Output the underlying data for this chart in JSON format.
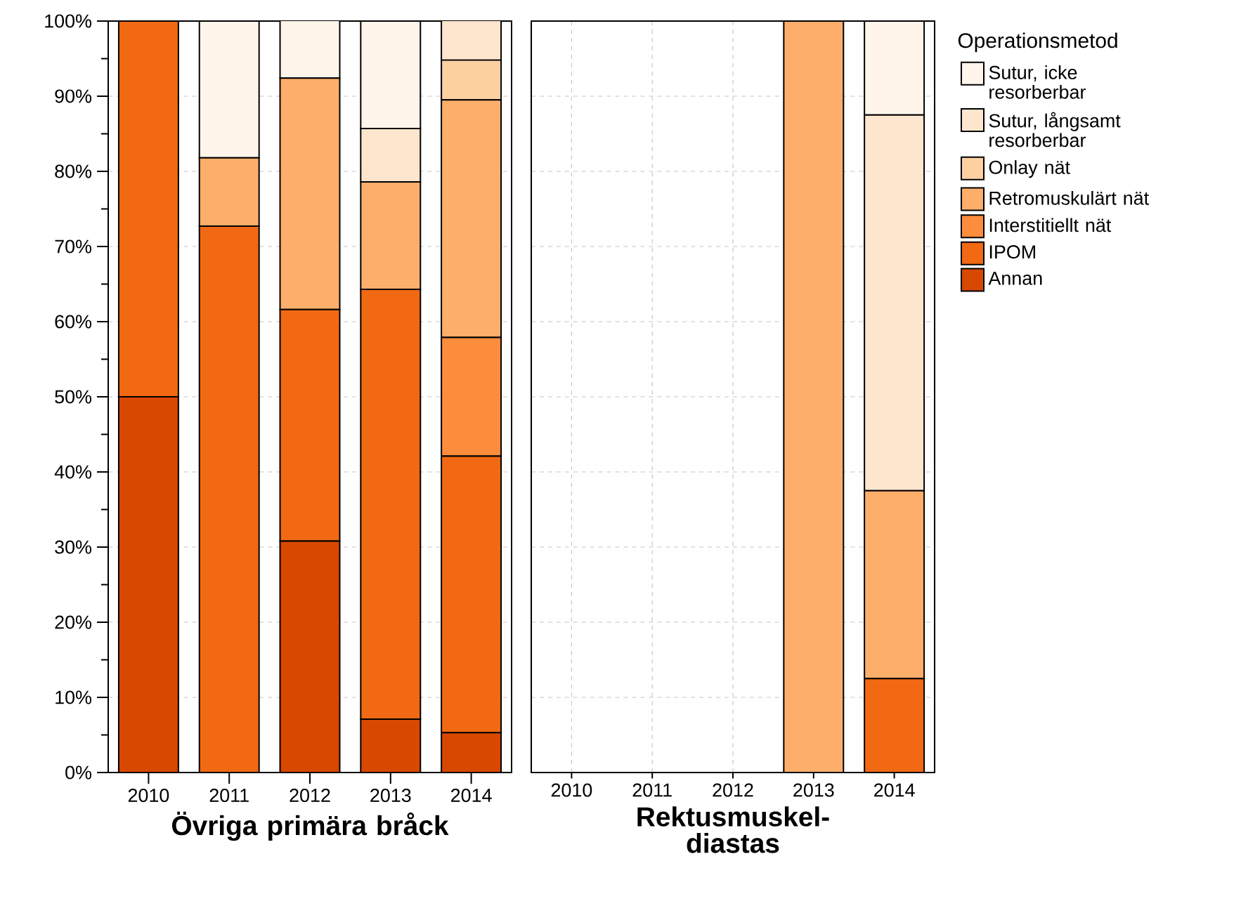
{
  "chart_data": [
    {
      "type": "bar",
      "stacked": true,
      "xlabel": "Övriga primära bråck",
      "categories": [
        "2010",
        "2011",
        "2012",
        "2013",
        "2014"
      ],
      "ylim": [
        0,
        100
      ],
      "yticks": [
        {
          "value": 0,
          "label": "0%"
        },
        {
          "value": 10,
          "label": "10%"
        },
        {
          "value": 20,
          "label": "20%"
        },
        {
          "value": 30,
          "label": "30%"
        },
        {
          "value": 40,
          "label": "40%"
        },
        {
          "value": 50,
          "label": "50%"
        },
        {
          "value": 60,
          "label": "60%"
        },
        {
          "value": 70,
          "label": "70%"
        },
        {
          "value": 80,
          "label": "80%"
        },
        {
          "value": 90,
          "label": "90%"
        },
        {
          "value": 100,
          "label": "100%"
        }
      ],
      "grid": true,
      "legend": false,
      "series": [
        {
          "color": "#d94801",
          "values": [
            50,
            0,
            30.8,
            7.1,
            5.3
          ]
        },
        {
          "color": "#f16913",
          "values": [
            50,
            72.7,
            30.8,
            57.2,
            36.8
          ]
        },
        {
          "color": "#fd8d3c",
          "values": [
            0,
            0,
            0,
            0,
            15.8
          ]
        },
        {
          "color": "#fdae6b",
          "values": [
            0,
            9.1,
            30.8,
            14.3,
            31.6
          ]
        },
        {
          "color": "#fdd0a2",
          "values": [
            0,
            0,
            0,
            0,
            5.3
          ]
        },
        {
          "color": "#fee6ce",
          "values": [
            0,
            0,
            0,
            7.1,
            5.3
          ]
        },
        {
          "color": "#fff5eb",
          "values": [
            0,
            18.2,
            7.7,
            14.3,
            0
          ]
        }
      ]
    },
    {
      "type": "bar",
      "stacked": true,
      "xlabel": "Rektusmuskel-diastas",
      "categories": [
        "2010",
        "2011",
        "2012",
        "2013",
        "2014"
      ],
      "ylim": [
        0,
        100
      ],
      "yticks": [
        0,
        10,
        20,
        30,
        40,
        50,
        60,
        70,
        80,
        90,
        100
      ],
      "grid": true,
      "tick_labels": "x",
      "legend": "right",
      "legend_title": "Operationsmetod",
      "series": [
        {
          "name": "Annan",
          "color": "#d94801",
          "values": [
            0,
            0,
            0,
            0,
            0
          ]
        },
        {
          "name": "IPOM",
          "color": "#f16913",
          "values": [
            0,
            0,
            0,
            0,
            12.5
          ]
        },
        {
          "name": "Interstitiellt nät",
          "color": "#fd8d3c",
          "values": [
            0,
            0,
            0,
            0,
            0
          ]
        },
        {
          "name": "Retromuskulärt nät",
          "color": "#fdae6b",
          "values": [
            0,
            0,
            0,
            100,
            25
          ]
        },
        {
          "name": "Onlay nät",
          "color": "#fdd0a2",
          "values": [
            0,
            0,
            0,
            0,
            0
          ]
        },
        {
          "name": "Sutur, långsamt resorberbar",
          "color": "#fee6ce",
          "values": [
            0,
            0,
            0,
            0,
            50
          ]
        },
        {
          "name": "Sutur, icke resorberbar",
          "color": "#fff5eb",
          "values": [
            0,
            0,
            0,
            0,
            12.5
          ]
        }
      ]
    }
  ]
}
